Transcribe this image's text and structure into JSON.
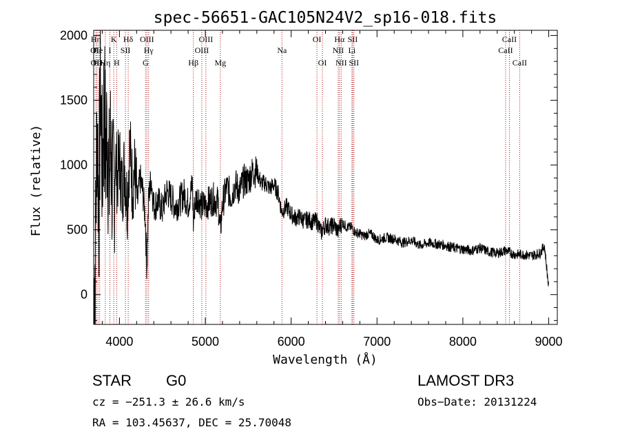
{
  "chart_data": {
    "type": "line",
    "title": "spec-56651-GAC105N24V2_sp16-018.fits",
    "xlabel": "Wavelength (Å)",
    "ylabel": "Flux (relative)",
    "xlim": [
      3700,
      9100
    ],
    "ylim": [
      -230,
      2040
    ],
    "xticks": [
      4000,
      5000,
      6000,
      7000,
      8000,
      9000
    ],
    "xtick_labels": [
      "4000",
      "5000",
      "6000",
      "7000",
      "8000",
      "9000"
    ],
    "yticks": [
      0,
      500,
      1000,
      1500,
      2000
    ],
    "ytick_labels": [
      "0",
      "500",
      "1000",
      "1500",
      "2000"
    ],
    "grid": false,
    "series": [
      {
        "name": "flux",
        "x": [
          3700,
          3720,
          3740,
          3760,
          3780,
          3800,
          3820,
          3840,
          3860,
          3880,
          3900,
          3925,
          3950,
          3975,
          4000,
          4030,
          4060,
          4090,
          4120,
          4150,
          4180,
          4210,
          4240,
          4270,
          4300,
          4320,
          4340,
          4370,
          4400,
          4450,
          4500,
          4550,
          4600,
          4650,
          4700,
          4750,
          4800,
          4850,
          4861,
          4880,
          4920,
          4960,
          5000,
          5050,
          5100,
          5150,
          5175,
          5200,
          5250,
          5300,
          5350,
          5400,
          5450,
          5500,
          5550,
          5600,
          5650,
          5700,
          5750,
          5800,
          5850,
          5890,
          5950,
          6000,
          6050,
          6100,
          6150,
          6200,
          6250,
          6300,
          6350,
          6400,
          6450,
          6500,
          6550,
          6563,
          6600,
          6650,
          6700,
          6750,
          6800,
          6850,
          6900,
          6950,
          7000,
          7100,
          7200,
          7300,
          7400,
          7500,
          7600,
          7700,
          7800,
          7900,
          8000,
          8100,
          8200,
          8300,
          8400,
          8500,
          8600,
          8700,
          8800,
          8900,
          8950,
          9000
        ],
        "y": [
          0,
          300,
          1400,
          600,
          1700,
          900,
          1500,
          1100,
          1300,
          800,
          1200,
          700,
          1100,
          900,
          1050,
          800,
          1000,
          700,
          1150,
          850,
          950,
          700,
          900,
          800,
          600,
          200,
          750,
          900,
          680,
          720,
          650,
          800,
          750,
          680,
          720,
          780,
          700,
          850,
          550,
          720,
          760,
          680,
          690,
          720,
          740,
          710,
          480,
          700,
          830,
          760,
          850,
          800,
          880,
          880,
          950,
          950,
          860,
          860,
          820,
          850,
          780,
          640,
          680,
          620,
          590,
          600,
          570,
          580,
          560,
          570,
          480,
          540,
          520,
          540,
          480,
          530,
          550,
          520,
          520,
          480,
          470,
          450,
          470,
          460,
          420,
          440,
          430,
          400,
          420,
          380,
          400,
          390,
          380,
          360,
          350,
          340,
          360,
          330,
          320,
          340,
          310,
          310,
          300,
          320,
          380,
          50
        ]
      }
    ],
    "lines": [
      {
        "label": "Hη",
        "x": 3727,
        "row": 1
      },
      {
        "label": "OII",
        "x": 3728,
        "row": 2
      },
      {
        "label": "OII",
        "x": 3731,
        "row": 3
      },
      {
        "label": "He",
        "x": 3750,
        "row": 2
      },
      {
        "label": "HeI",
        "x": 3770,
        "row": 3
      },
      {
        "label": "Hη",
        "x": 3835,
        "row": 3
      },
      {
        "label": "I",
        "x": 3889,
        "row": 2
      },
      {
        "label": "K",
        "x": 3934,
        "row": 1
      },
      {
        "label": "H",
        "x": 3968,
        "row": 3
      },
      {
        "label": "SII",
        "x": 4070,
        "row": 2
      },
      {
        "label": "Hδ",
        "x": 4102,
        "row": 1
      },
      {
        "label": "G",
        "x": 4304,
        "row": 3
      },
      {
        "label": "OIII",
        "x": 4320,
        "row": 1
      },
      {
        "label": "Hγ",
        "x": 4340,
        "row": 2
      },
      {
        "label": "Hβ",
        "x": 4861,
        "row": 3
      },
      {
        "label": "OIII",
        "x": 4959,
        "row": 2
      },
      {
        "label": "OIII",
        "x": 5007,
        "row": 1
      },
      {
        "label": "Mg",
        "x": 5175,
        "row": 3
      },
      {
        "label": "Na",
        "x": 5893,
        "row": 2
      },
      {
        "label": "OI",
        "x": 6300,
        "row": 1
      },
      {
        "label": "OI",
        "x": 6364,
        "row": 3
      },
      {
        "label": "NII",
        "x": 6548,
        "row": 2
      },
      {
        "label": "Hα",
        "x": 6563,
        "row": 1
      },
      {
        "label": "NII",
        "x": 6583,
        "row": 3
      },
      {
        "label": "Li",
        "x": 6708,
        "row": 2
      },
      {
        "label": "SII",
        "x": 6716,
        "row": 1
      },
      {
        "label": "SII",
        "x": 6731,
        "row": 3
      },
      {
        "label": "CaII",
        "x": 8498,
        "row": 2
      },
      {
        "label": "CaII",
        "x": 8542,
        "row": 1
      },
      {
        "label": "CaII",
        "x": 8662,
        "row": 3
      }
    ]
  },
  "info": {
    "class": "STAR",
    "subclass": "G0",
    "cz": "cz = −251.3 ± 26.6 km/s",
    "radec": "RA = 103.45637, DEC =  25.70048",
    "survey": "LAMOST DR3",
    "obsdate": "Obs−Date: 20131224"
  },
  "colors": {
    "axis": "#000000",
    "spectrum": "#000000",
    "line_marker": "#b00000"
  }
}
